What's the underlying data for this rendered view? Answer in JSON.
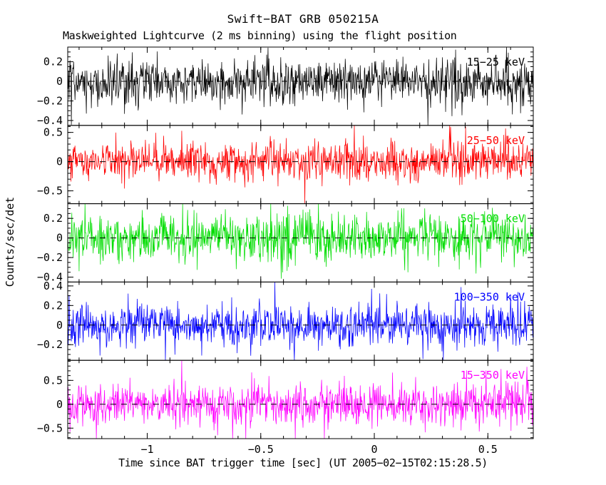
{
  "chart_data": {
    "type": "line",
    "title": "Swift−BAT GRB 050215A",
    "subtitle": "Maskweighted Lightcurve (2 ms binning) using the flight position",
    "xlabel": "Time since BAT trigger time [sec] (UT 2005−02−15T02:15:28.5)",
    "ylabel": "Counts/sec/det",
    "x_range": [
      -1.35,
      0.7
    ],
    "x_major_ticks": [
      -1,
      -0.5,
      0,
      0.5
    ],
    "x_minor_step": 0.1,
    "bins": 1025,
    "bin_seconds": 0.002,
    "grid": false,
    "legend_position": "top-right-inside-each-panel",
    "zero_line_style": "dashed-black",
    "panels": [
      {
        "label": "15−25 keV",
        "color": "#000000",
        "y_min": -0.45,
        "y_max": 0.35,
        "y_ticks": [
          0.2,
          0,
          -0.2,
          -0.4
        ],
        "y_minor_step": 0.05,
        "noise_sigma": 0.11,
        "seed": 101
      },
      {
        "label": "25−50 keV",
        "color": "#ff0000",
        "y_min": -0.72,
        "y_max": 0.62,
        "y_ticks": [
          0.5,
          0,
          -0.5
        ],
        "y_minor_step": 0.1,
        "noise_sigma": 0.16,
        "seed": 202
      },
      {
        "label": "50−100 keV",
        "color": "#00dd00",
        "y_min": -0.45,
        "y_max": 0.35,
        "y_ticks": [
          0.2,
          0,
          -0.2,
          -0.4
        ],
        "y_minor_step": 0.05,
        "noise_sigma": 0.12,
        "seed": 303
      },
      {
        "label": "100−350 keV",
        "color": "#0000ff",
        "y_min": -0.36,
        "y_max": 0.44,
        "y_ticks": [
          0.4,
          0.2,
          0,
          -0.2
        ],
        "y_minor_step": 0.05,
        "noise_sigma": 0.105,
        "seed": 404
      },
      {
        "label": "15−350 keV",
        "color": "#ff00ff",
        "y_min": -0.72,
        "y_max": 0.92,
        "y_ticks": [
          0.5,
          0,
          -0.5
        ],
        "y_minor_step": 0.1,
        "noise_sigma": 0.22,
        "seed": 505
      }
    ]
  }
}
